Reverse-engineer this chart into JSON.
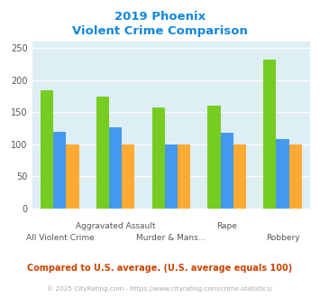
{
  "title_line1": "2019 Phoenix",
  "title_line2": "Violent Crime Comparison",
  "phoenix": [
    185,
    175,
    157,
    160,
    232
  ],
  "arizona": [
    120,
    126,
    100,
    118,
    108
  ],
  "national": [
    100,
    100,
    100,
    100,
    100
  ],
  "phoenix_color": "#77cc22",
  "arizona_color": "#4499ee",
  "national_color": "#ffaa33",
  "ylim": [
    0,
    260
  ],
  "yticks": [
    0,
    50,
    100,
    150,
    200,
    250
  ],
  "chart_bg": "#ddeef5",
  "title_color": "#1188dd",
  "footer_text": "Compared to U.S. average. (U.S. average equals 100)",
  "footer_color": "#cc4400",
  "copyright_text": "© 2025 CityRating.com - https://www.cityrating.com/crime-statistics/",
  "copyright_color": "#aaaaaa",
  "bar_width": 0.23,
  "top_xlabels": [
    "",
    "Aggravated Assault",
    "",
    "Rape",
    ""
  ],
  "bottom_xlabels": [
    "All Violent Crime",
    "",
    "Murder & Mans...",
    "",
    "Robbery"
  ]
}
